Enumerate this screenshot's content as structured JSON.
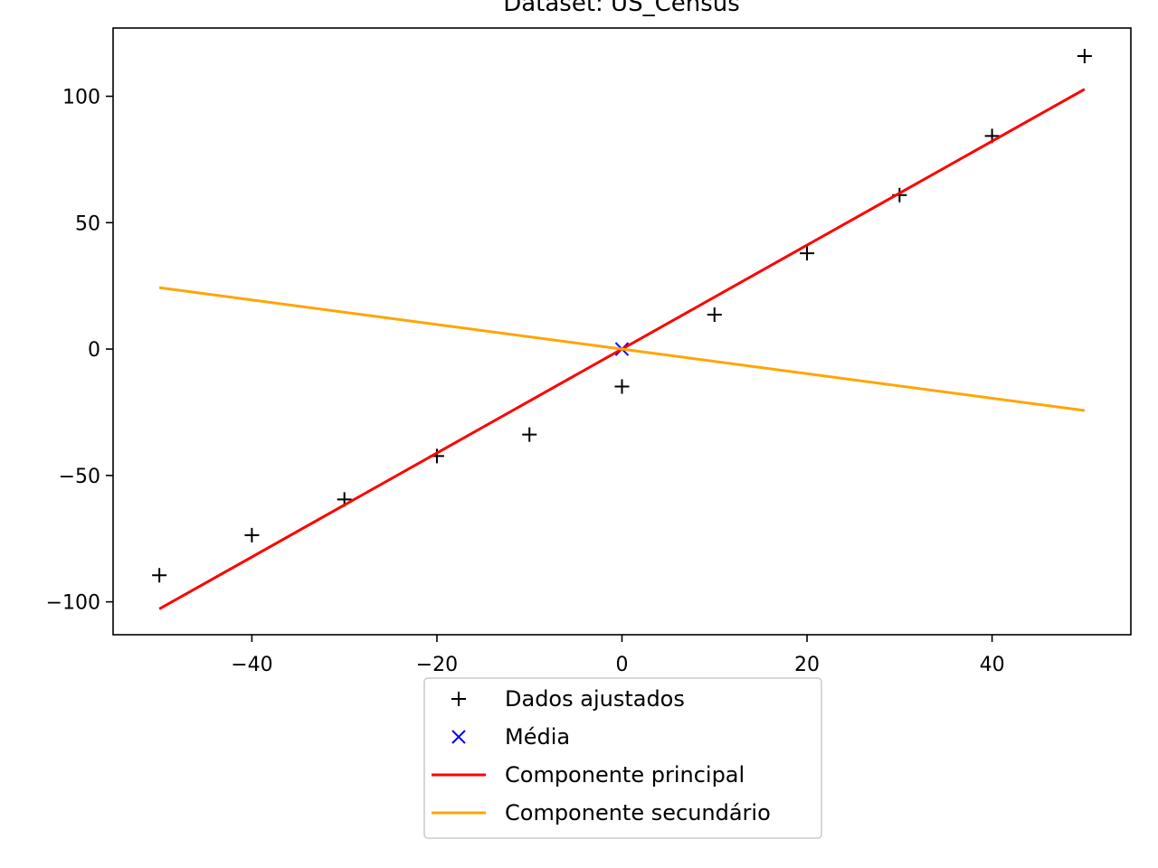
{
  "chart_data": {
    "type": "scatter",
    "title": "Dataset: US_Census",
    "xlabel": "",
    "ylabel": "",
    "xlim": [
      -55,
      55
    ],
    "ylim": [
      -113,
      127
    ],
    "x_ticks": [
      -40,
      -20,
      0,
      20,
      40
    ],
    "y_ticks": [
      -100,
      -50,
      0,
      50,
      100
    ],
    "x_tick_labels": [
      "−40",
      "−20",
      "0",
      "20",
      "40"
    ],
    "y_tick_labels": [
      "−100",
      "−50",
      "0",
      "50",
      "100"
    ],
    "grid": false,
    "legend_position": "below",
    "series": [
      {
        "name": "Dados ajustados",
        "kind": "markers",
        "marker": "plus",
        "color": "#000000",
        "x": [
          -50,
          -40,
          -30,
          -20,
          -10,
          0,
          10,
          20,
          30,
          40,
          50
        ],
        "y": [
          -89.5,
          -73.6,
          -59.5,
          -42.3,
          -33.8,
          -14.8,
          13.6,
          37.9,
          60.9,
          84.3,
          115.9
        ]
      },
      {
        "name": "Média",
        "kind": "markers",
        "marker": "x",
        "color": "#0000ff",
        "x": [
          0
        ],
        "y": [
          0
        ]
      },
      {
        "name": "Componente principal",
        "kind": "line",
        "color": "#ff0000",
        "x": [
          -50,
          50
        ],
        "y": [
          -102.8,
          102.8
        ]
      },
      {
        "name": "Componente secundário",
        "kind": "line",
        "color": "#ffa500",
        "x": [
          -50,
          50
        ],
        "y": [
          24.3,
          -24.3
        ]
      }
    ]
  }
}
